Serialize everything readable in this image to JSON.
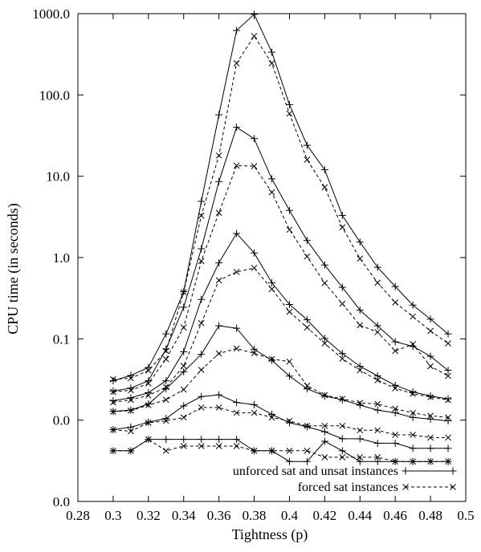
{
  "chart_data": {
    "type": "line",
    "xlabel": "Tightness (p)",
    "ylabel": "CPU time (in seconds)",
    "xlim": [
      0.28,
      0.5
    ],
    "y_scale": "log",
    "ylim": [
      0.001,
      1000
    ],
    "x_ticks": [
      0.28,
      0.3,
      0.32,
      0.34,
      0.36,
      0.38,
      0.4,
      0.42,
      0.44,
      0.46,
      0.48,
      0.5
    ],
    "x_tick_labels": [
      "0.28",
      "0.3",
      "0.32",
      "0.34",
      "0.36",
      "0.38",
      "0.4",
      "0.42",
      "0.44",
      "0.46",
      "0.48",
      "0.5"
    ],
    "y_ticks": [
      0.001,
      0.01,
      0.1,
      1,
      10,
      100,
      1000
    ],
    "y_tick_labels": [
      "0.0",
      "0.0",
      "0.1",
      "1.0",
      "10.0",
      "100.0",
      "1000.0"
    ],
    "grid": false,
    "legend_position": "bottom-right",
    "legend": [
      {
        "label": "unforced sat and unsat instances",
        "style": "solid",
        "marker": "plus"
      },
      {
        "label": "forced sat instances",
        "style": "dashed",
        "marker": "cross"
      }
    ],
    "x": [
      0.3,
      0.31,
      0.32,
      0.33,
      0.34,
      0.35,
      0.36,
      0.37,
      0.38,
      0.39,
      0.4,
      0.41,
      0.42,
      0.43,
      0.44,
      0.45,
      0.46,
      0.47,
      0.48,
      0.49
    ],
    "series": [
      {
        "group": "unforced",
        "values": [
          0.0305,
          0.0355,
          0.0445,
          0.115,
          0.38,
          4.9,
          57,
          620,
          980,
          335,
          76,
          24,
          12,
          3.3,
          1.55,
          0.76,
          0.44,
          0.26,
          0.175,
          0.115
        ]
      },
      {
        "group": "unforced",
        "values": [
          0.0228,
          0.0248,
          0.0305,
          0.075,
          0.245,
          1.28,
          8.6,
          40,
          29,
          9.3,
          3.8,
          1.62,
          0.81,
          0.43,
          0.225,
          0.145,
          0.092,
          0.081,
          0.061,
          0.041
        ]
      },
      {
        "group": "unforced",
        "values": [
          0.0173,
          0.0188,
          0.0218,
          0.0305,
          0.0695,
          0.305,
          0.86,
          1.98,
          1.14,
          0.49,
          0.265,
          0.172,
          0.101,
          0.066,
          0.046,
          0.035,
          0.0268,
          0.0223,
          0.0198,
          0.0183
        ]
      },
      {
        "group": "unforced",
        "values": [
          0.0128,
          0.0133,
          0.0158,
          0.0243,
          0.0393,
          0.0645,
          0.145,
          0.135,
          0.0745,
          0.0545,
          0.0348,
          0.0243,
          0.0198,
          0.0178,
          0.0153,
          0.0133,
          0.0123,
          0.0108,
          0.0103,
          0.0098
        ]
      },
      {
        "group": "unforced",
        "values": [
          0.00765,
          0.0082,
          0.00945,
          0.0105,
          0.015,
          0.0195,
          0.0205,
          0.0165,
          0.0155,
          0.0118,
          0.0093,
          0.0083,
          0.0072,
          0.0059,
          0.0059,
          0.0052,
          0.0052,
          0.0045,
          0.0045,
          0.0045
        ]
      },
      {
        "group": "unforced",
        "values": [
          0.0042,
          0.0042,
          0.0058,
          0.0058,
          0.0058,
          0.0058,
          0.0058,
          0.0058,
          0.0042,
          0.0042,
          0.0031,
          0.0031,
          0.0055,
          0.0042,
          0.0031,
          0.0031,
          0.0031,
          0.0031,
          0.0031,
          0.0031
        ]
      },
      {
        "group": "forced",
        "values": [
          0.0318,
          0.0328,
          0.0408,
          0.0708,
          0.375,
          3.28,
          18,
          245,
          530,
          245,
          59,
          16,
          7.3,
          2.35,
          0.97,
          0.49,
          0.28,
          0.188,
          0.125,
          0.088
        ]
      },
      {
        "group": "forced",
        "values": [
          0.0223,
          0.0233,
          0.0283,
          0.0563,
          0.138,
          0.905,
          3.55,
          13.5,
          13.3,
          6.35,
          2.2,
          1.03,
          0.485,
          0.27,
          0.147,
          0.121,
          0.071,
          0.086,
          0.046,
          0.035
        ]
      },
      {
        "group": "forced",
        "values": [
          0.0166,
          0.0177,
          0.0201,
          0.0255,
          0.0465,
          0.156,
          0.525,
          0.665,
          0.745,
          0.41,
          0.215,
          0.138,
          0.088,
          0.057,
          0.041,
          0.031,
          0.0247,
          0.0212,
          0.0192,
          0.0177
        ]
      },
      {
        "group": "forced",
        "values": [
          0.0127,
          0.0131,
          0.0153,
          0.0178,
          0.0238,
          0.0415,
          0.066,
          0.076,
          0.0665,
          0.0565,
          0.0525,
          0.0265,
          0.0203,
          0.0183,
          0.0163,
          0.0158,
          0.0138,
          0.0123,
          0.0113,
          0.0108
        ]
      },
      {
        "group": "forced",
        "values": [
          0.0076,
          0.0073,
          0.0093,
          0.0098,
          0.0108,
          0.0143,
          0.0143,
          0.0123,
          0.0123,
          0.0108,
          0.0098,
          0.0085,
          0.0085,
          0.0085,
          0.0075,
          0.0075,
          0.0066,
          0.0066,
          0.0061,
          0.0061
        ]
      },
      {
        "group": "forced",
        "values": [
          0.0042,
          0.0042,
          0.0058,
          0.0042,
          0.0048,
          0.0048,
          0.0048,
          0.0048,
          0.0042,
          0.0042,
          0.0042,
          0.0042,
          0.0035,
          0.0035,
          0.0035,
          0.0035,
          0.0031,
          0.0031,
          0.0031,
          0.0031
        ]
      }
    ]
  }
}
